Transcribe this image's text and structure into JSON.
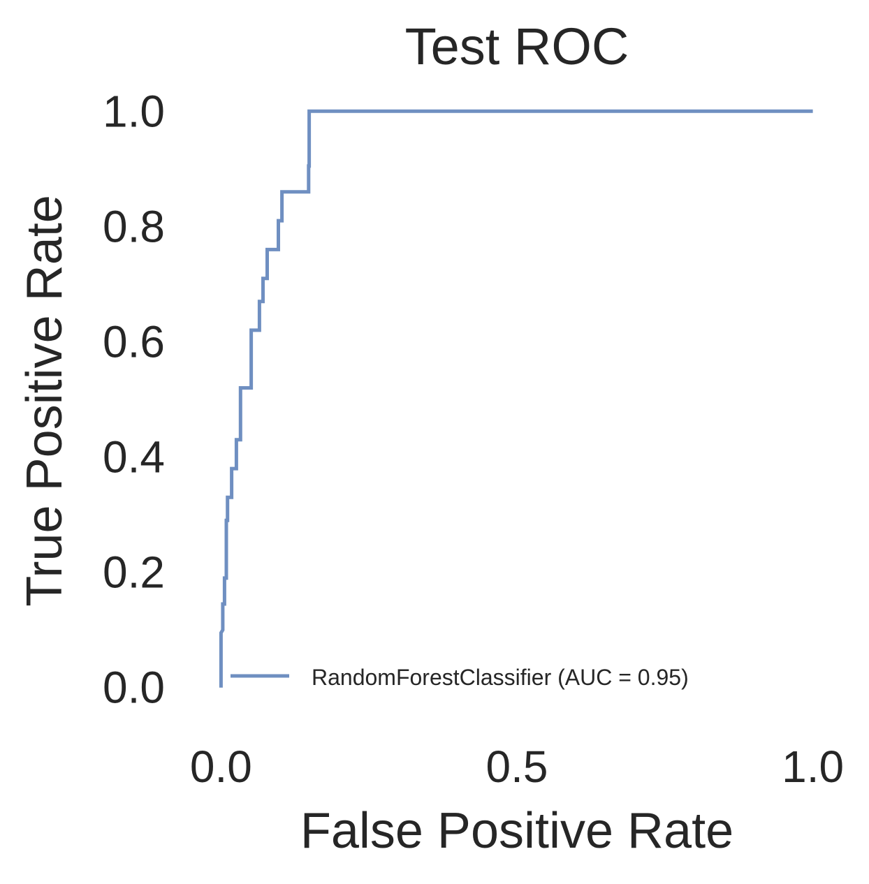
{
  "chart_data": {
    "type": "line",
    "title": "Test ROC",
    "xlabel": "False Positive Rate",
    "ylabel": "True Positive Rate",
    "xlim": [
      -0.05,
      1.05
    ],
    "ylim": [
      -0.05,
      1.05
    ],
    "xticks": [
      0.0,
      0.5,
      1.0
    ],
    "xtick_labels": [
      "0.0",
      "0.5",
      "1.0"
    ],
    "yticks": [
      0.0,
      0.2,
      0.4,
      0.6,
      0.8,
      1.0
    ],
    "ytick_labels": [
      "0.0",
      "0.2",
      "0.4",
      "0.6",
      "0.8",
      "1.0"
    ],
    "grid": false,
    "legend": {
      "position": "lower-right"
    },
    "colors": {
      "series": "#6f8fc1",
      "text": "#262626"
    },
    "series": [
      {
        "name": "RandomForestClassifier (AUC = 0.95)",
        "x": [
          0.0,
          0.0,
          0.0,
          0.0,
          0.003,
          0.003,
          0.006,
          0.006,
          0.009,
          0.009,
          0.009,
          0.011,
          0.011,
          0.011,
          0.018,
          0.018,
          0.026,
          0.026,
          0.033,
          0.033,
          0.033,
          0.051,
          0.051,
          0.065,
          0.065,
          0.071,
          0.071,
          0.078,
          0.078,
          0.097,
          0.097,
          0.103,
          0.103,
          0.148,
          0.148,
          0.149,
          0.149,
          1.0
        ],
        "y": [
          0.0,
          0.09,
          0.095,
          0.095,
          0.1,
          0.145,
          0.145,
          0.19,
          0.19,
          0.24,
          0.29,
          0.29,
          0.33,
          0.33,
          0.33,
          0.38,
          0.38,
          0.43,
          0.43,
          0.48,
          0.52,
          0.52,
          0.62,
          0.62,
          0.67,
          0.67,
          0.71,
          0.71,
          0.76,
          0.76,
          0.81,
          0.81,
          0.86,
          0.86,
          0.905,
          0.905,
          1.0,
          1.0
        ]
      }
    ]
  }
}
